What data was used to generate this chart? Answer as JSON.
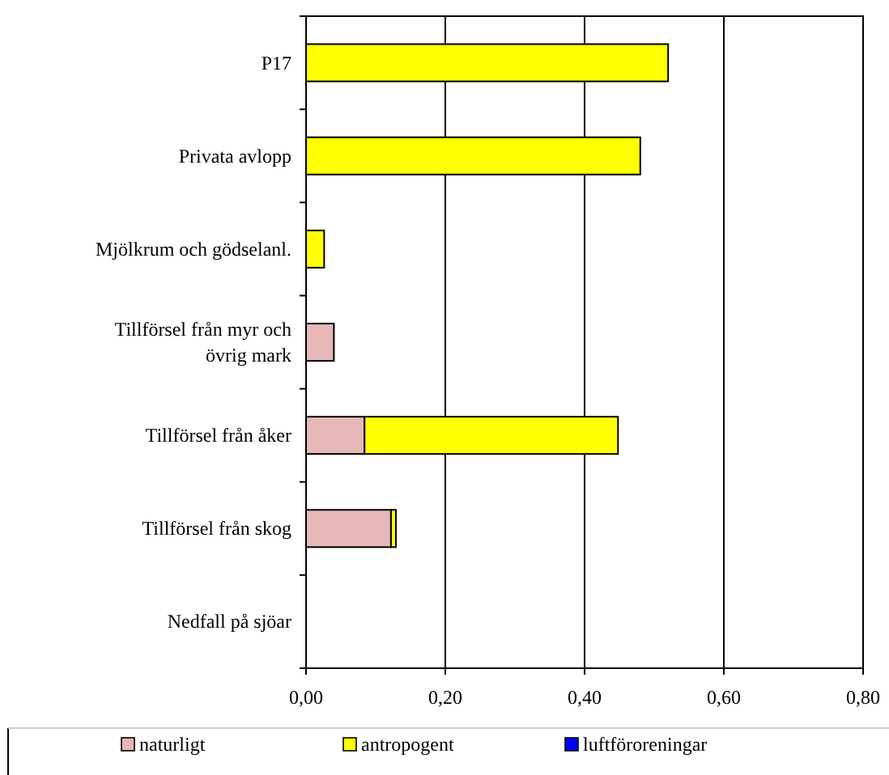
{
  "chart_data": {
    "type": "bar",
    "orientation": "horizontal",
    "stacked": true,
    "categories": [
      "P17",
      "Privata avlopp",
      "Mjölkrum och gödselanl.",
      "Tillförsel från myr och övrig mark",
      "Tillförsel från åker",
      "Tillförsel från skog",
      "Nedfall på sjöar"
    ],
    "series": [
      {
        "name": "naturligt",
        "color": "#e6b8b7",
        "values": [
          0,
          0,
          0,
          0.04,
          0.084,
          0.122,
          0
        ]
      },
      {
        "name": "antropogent",
        "color": "#ffff00",
        "values": [
          0.52,
          0.48,
          0.026,
          0,
          0.364,
          0.007,
          0
        ]
      },
      {
        "name": "luftföroreningar",
        "color": "#0000ff",
        "values": [
          0,
          0,
          0,
          0,
          0,
          0,
          0
        ]
      }
    ],
    "xlim": [
      0,
      0.8
    ],
    "xticks": [
      {
        "value": 0,
        "label": "0,00"
      },
      {
        "value": 0.2,
        "label": "0,20"
      },
      {
        "value": 0.4,
        "label": "0,40"
      },
      {
        "value": 0.6,
        "label": "0,60"
      },
      {
        "value": 0.8,
        "label": "0,80"
      }
    ],
    "grid": "x",
    "legend": "bottom"
  }
}
